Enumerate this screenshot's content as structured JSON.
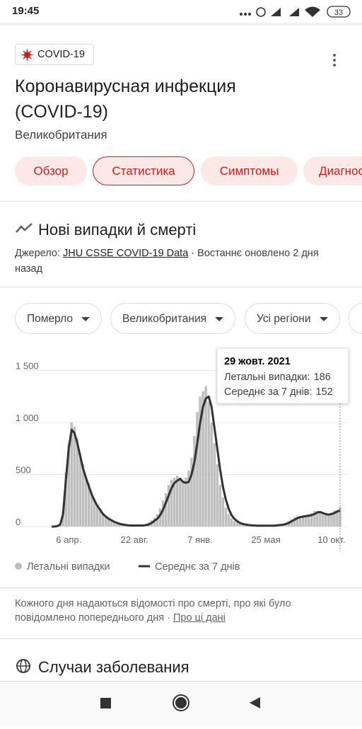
{
  "status": {
    "time": "19:45",
    "battery": "33"
  },
  "header": {
    "chip": "COVID-19",
    "title": "Коронавирусная инфекция (COVID-19)",
    "subtitle": "Великобритания",
    "tabs": [
      "Обзор",
      "Статистика",
      "Симптомы",
      "Диагностика"
    ]
  },
  "section": {
    "title": "Нові випадки й смерті",
    "source_prefix": "Джерело:",
    "source_link": "JHU CSSE COVID-19 Data",
    "source_suffix": "· Востаннє оновлено 2 дня назад",
    "filters": [
      "Померло",
      "Великобритания",
      "Усі регіони"
    ]
  },
  "chart_data": {
    "type": "bar-line",
    "categories": [
      null,
      null,
      null,
      null,
      null,
      null,
      "6 апр.",
      null,
      null,
      null,
      null,
      null,
      null,
      null,
      null,
      null,
      null,
      null,
      null,
      null,
      null,
      null,
      null,
      null,
      null,
      null,
      null,
      null,
      null,
      "22 авг.",
      null,
      null,
      null,
      null,
      null,
      null,
      null,
      null,
      null,
      null,
      null,
      null,
      null,
      null,
      null,
      null,
      null,
      null,
      null,
      null,
      null,
      null,
      "7 янв.",
      null,
      null,
      null,
      null,
      null,
      null,
      null,
      null,
      null,
      null,
      null,
      null,
      null,
      null,
      null,
      null,
      null,
      null,
      null,
      null,
      null,
      null,
      "25 мая",
      null,
      null,
      null,
      null,
      null,
      null,
      null,
      null,
      null,
      null,
      null,
      null,
      null,
      null,
      null,
      null,
      null,
      null,
      null,
      null,
      null,
      null,
      "10 окт.",
      null,
      null,
      null
    ],
    "series": [
      {
        "name": "Летальні випадки",
        "color": "#bdbdbd",
        "values": [
          0,
          0,
          6,
          25,
          150,
          520,
          800,
          1000,
          960,
          850,
          700,
          600,
          480,
          420,
          330,
          270,
          210,
          170,
          130,
          100,
          80,
          65,
          50,
          38,
          28,
          22,
          16,
          13,
          11,
          10,
          11,
          9,
          16,
          22,
          40,
          60,
          85,
          120,
          175,
          250,
          320,
          400,
          450,
          470,
          490,
          450,
          440,
          470,
          540,
          660,
          870,
          1100,
          1250,
          1300,
          1350,
          1200,
          1000,
          800,
          600,
          400,
          280,
          180,
          120,
          80,
          55,
          38,
          27,
          22,
          16,
          13,
          11,
          9,
          9,
          9,
          8,
          9,
          9,
          10,
          13,
          17,
          20,
          27,
          38,
          55,
          70,
          88,
          98,
          102,
          110,
          112,
          118,
          130,
          150,
          150,
          140,
          130,
          122,
          125,
          135,
          155,
          160,
          186
        ]
      },
      {
        "name": "Середнє за 7 днів",
        "color": "#333333",
        "values": [
          0,
          0,
          5,
          20,
          120,
          450,
          750,
          930,
          900,
          800,
          680,
          560,
          470,
          390,
          310,
          250,
          200,
          160,
          120,
          95,
          75,
          60,
          45,
          35,
          25,
          20,
          15,
          12,
          10,
          10,
          10,
          10,
          10,
          15,
          20,
          35,
          55,
          75,
          110,
          160,
          230,
          300,
          370,
          420,
          440,
          460,
          430,
          420,
          430,
          500,
          620,
          800,
          1000,
          1150,
          1230,
          1250,
          1150,
          950,
          750,
          550,
          380,
          260,
          170,
          110,
          75,
          50,
          35,
          25,
          20,
          15,
          12,
          10,
          8,
          8,
          8,
          8,
          8,
          8,
          9,
          12,
          15,
          18,
          25,
          35,
          50,
          65,
          80,
          90,
          95,
          100,
          105,
          110,
          120,
          135,
          140,
          130,
          120,
          115,
          120,
          130,
          145,
          152
        ]
      }
    ],
    "ylim": [
      0,
      1700
    ],
    "yticks": [
      0,
      500,
      {
        "value": 1000,
        "label": "1 000"
      },
      {
        "value": 1500,
        "label": "1 500"
      }
    ],
    "grid": true,
    "tooltip": {
      "date": "29 жовт. 2021",
      "labels": [
        "Летальні випадки:",
        "Середнє за 7 днів:"
      ]
    }
  },
  "note": {
    "text": "Кожного дня надаються відомості про смерті, про які було повідомлено попереднього дня ·",
    "link": "Про ці дані"
  },
  "next_section": {
    "title": "Случаи заболевания"
  }
}
